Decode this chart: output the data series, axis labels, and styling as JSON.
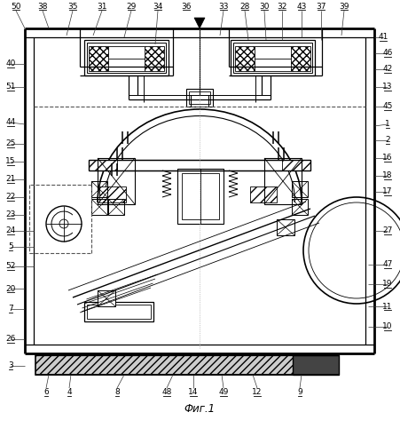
{
  "title": "Фиг.1",
  "bg_color": "#ffffff",
  "lc": "#000000",
  "fig_width": 4.51,
  "fig_height": 5.0,
  "dpi": 100,
  "labels": [
    [
      18,
      493,
      "50"
    ],
    [
      48,
      493,
      "38"
    ],
    [
      82,
      493,
      "35"
    ],
    [
      115,
      493,
      "31"
    ],
    [
      148,
      493,
      "29"
    ],
    [
      178,
      493,
      "34"
    ],
    [
      210,
      493,
      "36"
    ],
    [
      252,
      493,
      "33"
    ],
    [
      276,
      493,
      "28"
    ],
    [
      298,
      493,
      "30"
    ],
    [
      318,
      493,
      "32"
    ],
    [
      340,
      493,
      "43"
    ],
    [
      362,
      493,
      "37"
    ],
    [
      388,
      493,
      "39"
    ],
    [
      432,
      458,
      "41"
    ],
    [
      437,
      440,
      "46"
    ],
    [
      437,
      422,
      "42"
    ],
    [
      437,
      402,
      "13"
    ],
    [
      437,
      380,
      "45"
    ],
    [
      437,
      360,
      "1"
    ],
    [
      437,
      342,
      "2"
    ],
    [
      437,
      322,
      "16"
    ],
    [
      437,
      302,
      "18"
    ],
    [
      437,
      284,
      "17"
    ],
    [
      437,
      240,
      "27"
    ],
    [
      437,
      202,
      "47"
    ],
    [
      437,
      180,
      "19"
    ],
    [
      437,
      155,
      "11"
    ],
    [
      437,
      132,
      "10"
    ],
    [
      12,
      428,
      "40"
    ],
    [
      12,
      402,
      "51"
    ],
    [
      12,
      362,
      "44"
    ],
    [
      12,
      338,
      "25"
    ],
    [
      12,
      318,
      "15"
    ],
    [
      12,
      298,
      "21"
    ],
    [
      12,
      278,
      "22"
    ],
    [
      12,
      258,
      "23"
    ],
    [
      12,
      240,
      "24"
    ],
    [
      12,
      222,
      "5"
    ],
    [
      12,
      200,
      "52"
    ],
    [
      12,
      175,
      "20"
    ],
    [
      12,
      152,
      "7"
    ],
    [
      12,
      118,
      "26"
    ],
    [
      12,
      88,
      "3"
    ],
    [
      52,
      58,
      "6"
    ],
    [
      78,
      58,
      "4"
    ],
    [
      132,
      58,
      "8"
    ],
    [
      188,
      58,
      "48"
    ],
    [
      218,
      58,
      "14"
    ],
    [
      252,
      58,
      "49"
    ],
    [
      290,
      58,
      "12"
    ],
    [
      338,
      58,
      "9"
    ]
  ]
}
